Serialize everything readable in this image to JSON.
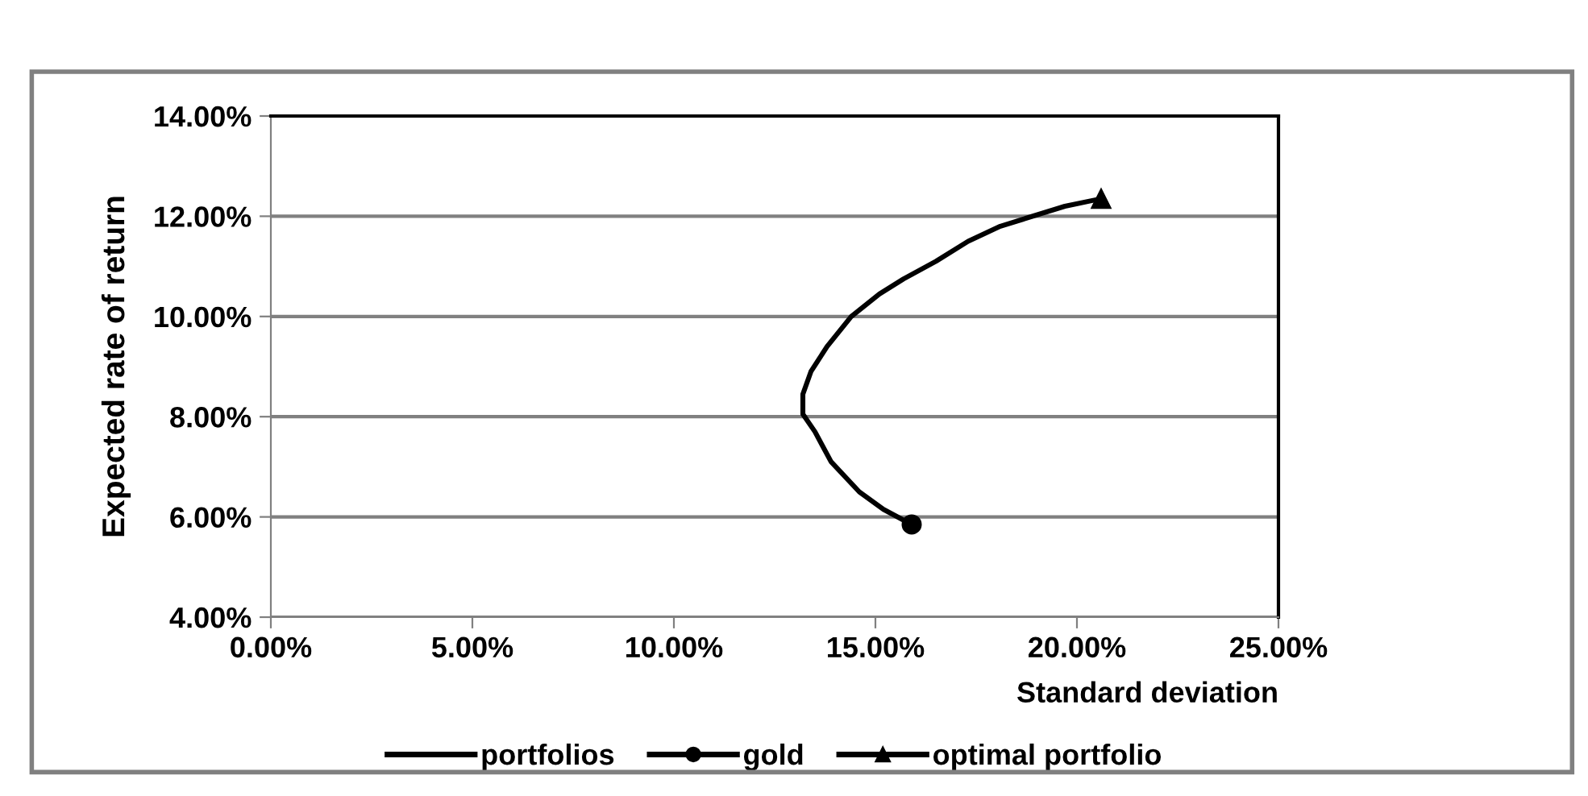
{
  "chart_data": {
    "type": "line",
    "xlabel": "Standard deviation",
    "ylabel": "Expected rate of return",
    "xlim": [
      0,
      25
    ],
    "ylim": [
      4,
      14
    ],
    "xticks": [
      {
        "value": 0,
        "label": "0.00%"
      },
      {
        "value": 5,
        "label": "5.00%"
      },
      {
        "value": 10,
        "label": "10.00%"
      },
      {
        "value": 15,
        "label": "15.00%"
      },
      {
        "value": 20,
        "label": "20.00%"
      },
      {
        "value": 25,
        "label": "25.00%"
      }
    ],
    "yticks": [
      {
        "value": 4,
        "label": "4.00%"
      },
      {
        "value": 6,
        "label": "6.00%"
      },
      {
        "value": 8,
        "label": "8.00%"
      },
      {
        "value": 10,
        "label": "10.00%"
      },
      {
        "value": 12,
        "label": "12.00%"
      },
      {
        "value": 14,
        "label": "14.00%"
      }
    ],
    "grid": "y",
    "legend": "bottom",
    "series": [
      {
        "name": "portfolios",
        "color": "#000000",
        "marker": "none",
        "x": [
          15.9,
          15.2,
          14.6,
          13.9,
          13.5,
          13.2,
          13.2,
          13.4,
          13.8,
          14.4,
          15.1,
          15.7,
          16.5,
          17.3,
          18.1,
          19.7,
          20.6
        ],
        "values": [
          5.85,
          6.15,
          6.5,
          7.1,
          7.7,
          8.05,
          8.45,
          8.9,
          9.4,
          10.0,
          10.45,
          10.75,
          11.1,
          11.5,
          11.8,
          12.2,
          12.35
        ]
      },
      {
        "name": "gold",
        "color": "#000000",
        "marker": "circle",
        "x": [
          15.9
        ],
        "values": [
          5.85
        ]
      },
      {
        "name": "optimal portfolio",
        "color": "#000000",
        "marker": "triangle",
        "x": [
          20.6
        ],
        "values": [
          12.35
        ]
      }
    ]
  }
}
